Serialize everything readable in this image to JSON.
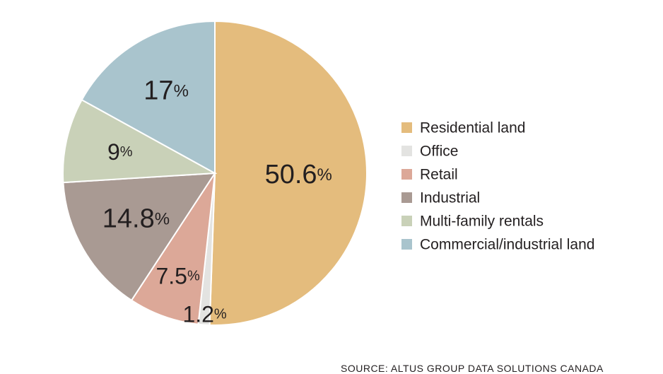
{
  "chart_data": {
    "type": "pie",
    "start_angle_deg": 0,
    "direction": "clockwise",
    "legend_position": "right",
    "slices": [
      {
        "name": "Residential land",
        "value": 50.6,
        "label": "50.6",
        "color": "#e4bc7d"
      },
      {
        "name": "Office",
        "value": 1.2,
        "label": "1.2",
        "color": "#e3e3e1"
      },
      {
        "name": "Retail",
        "value": 7.5,
        "label": "7.5",
        "color": "#dca898"
      },
      {
        "name": "Industrial",
        "value": 14.8,
        "label": "14.8",
        "color": "#a99a93"
      },
      {
        "name": "Multi-family rentals",
        "value": 9,
        "label": "9",
        "color": "#c9d1b8"
      },
      {
        "name": "Commercial/industrial land",
        "value": 17,
        "label": "17",
        "color": "#a9c4cd"
      }
    ],
    "percent_sign": "%"
  },
  "source": "SOURCE: ALTUS GROUP DATA SOLUTIONS CANADA"
}
